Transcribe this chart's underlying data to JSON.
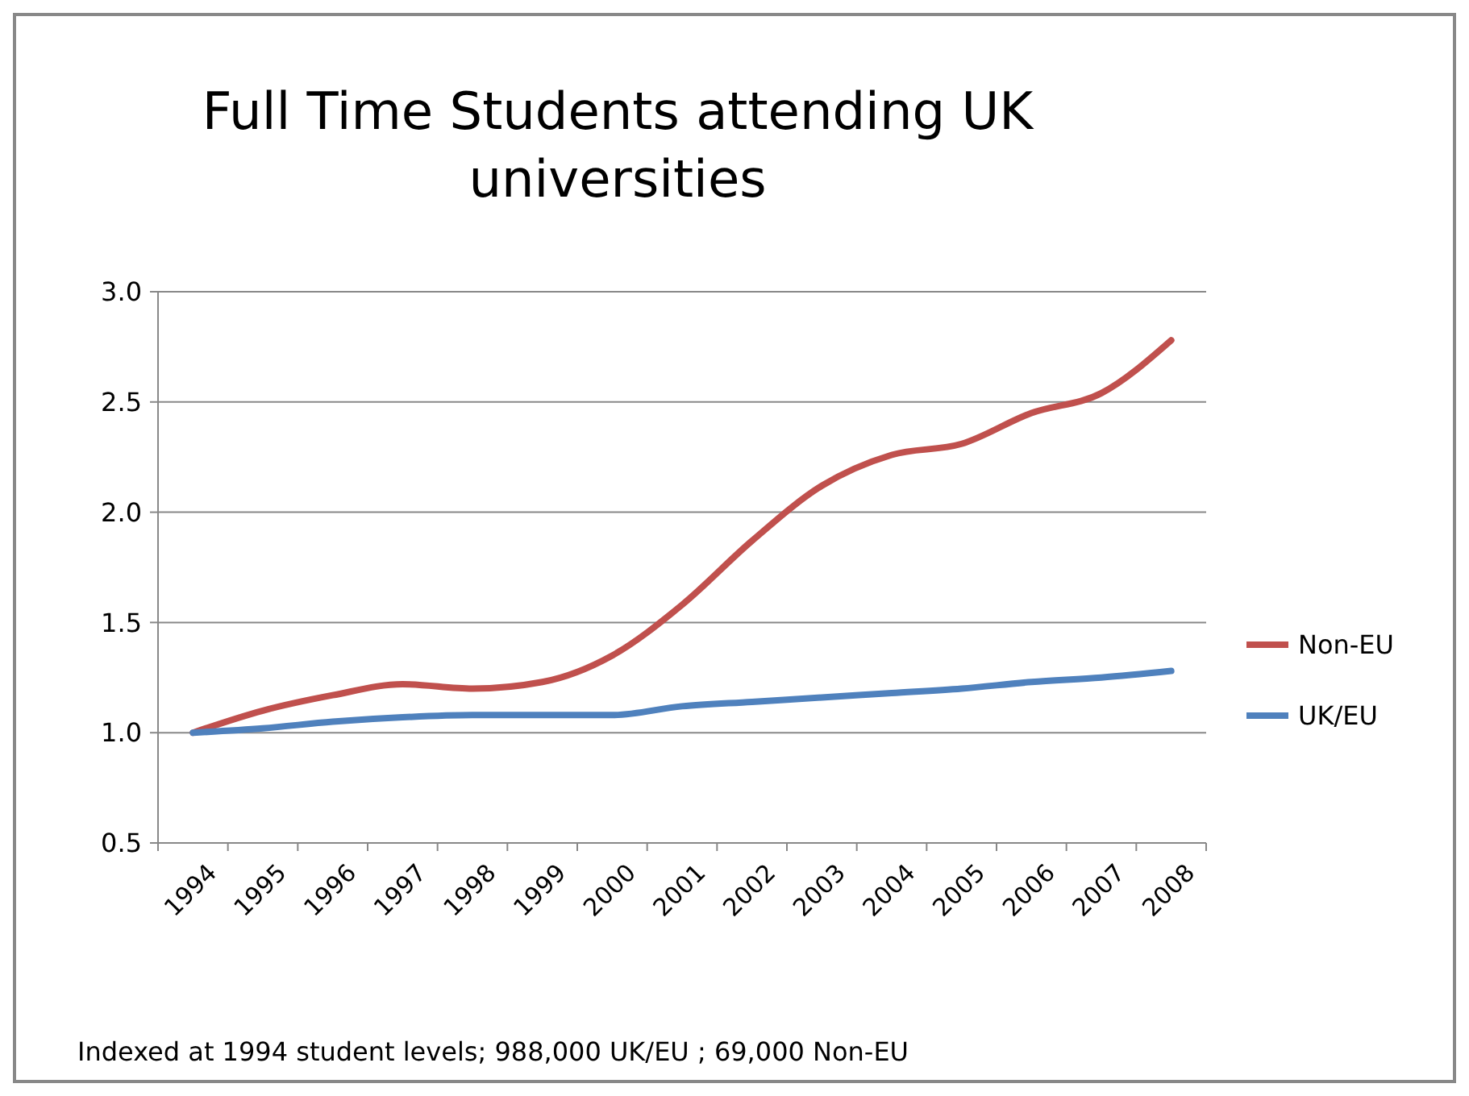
{
  "chart_data": {
    "type": "line",
    "title": "Full Time Students attending UK universities",
    "categories": [
      "1994",
      "1995",
      "1996",
      "1997",
      "1998",
      "1999",
      "2000",
      "2001",
      "2002",
      "2003",
      "2004",
      "2005",
      "2006",
      "2007",
      "2008"
    ],
    "series": [
      {
        "name": "Non-EU",
        "color": "#c0504d",
        "values": [
          1.0,
          1.1,
          1.17,
          1.22,
          1.2,
          1.23,
          1.35,
          1.58,
          1.87,
          2.12,
          2.26,
          2.31,
          2.45,
          2.54,
          2.78
        ]
      },
      {
        "name": "UK/EU",
        "color": "#4f81bd",
        "values": [
          1.0,
          1.02,
          1.05,
          1.07,
          1.08,
          1.08,
          1.08,
          1.12,
          1.14,
          1.16,
          1.18,
          1.2,
          1.23,
          1.25,
          1.28
        ]
      }
    ],
    "ylim": [
      0.5,
      3.0
    ],
    "yticks": [
      {
        "value": 0.5,
        "label": "0.5"
      },
      {
        "value": 1.0,
        "label": "1.0"
      },
      {
        "value": 1.5,
        "label": "1.5"
      },
      {
        "value": 2.0,
        "label": "2.0"
      },
      {
        "value": 2.5,
        "label": "2.5"
      },
      {
        "value": 3.0,
        "label": "3.0"
      }
    ],
    "grid": "y",
    "legend": "right",
    "marker": "none",
    "line_style": "solid",
    "annotations": [
      "Indexed at 1994 student levels;  988,000 UK/EU ; 69,000 Non-EU"
    ]
  }
}
